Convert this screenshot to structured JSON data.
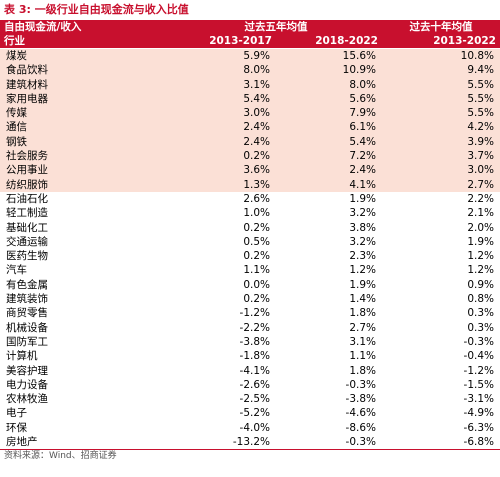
{
  "caption": "表 3:  一级行业自由现金流与收入比值",
  "header": {
    "left_label_1": "自由现金流/收入",
    "group_5yr": "过去五年均值",
    "group_10yr": "过去十年均值",
    "left_label_2": "行业",
    "col1": "2013-2017",
    "col2": "2018-2022",
    "col3": "2013-2022"
  },
  "rows": [
    {
      "name": "煤炭",
      "v1": "5.9%",
      "v2": "15.6%",
      "v3": "10.8%",
      "highlight": true
    },
    {
      "name": "食品饮料",
      "v1": "8.0%",
      "v2": "10.9%",
      "v3": "9.4%",
      "highlight": true
    },
    {
      "name": "建筑材料",
      "v1": "3.1%",
      "v2": "8.0%",
      "v3": "5.5%",
      "highlight": true
    },
    {
      "name": "家用电器",
      "v1": "5.4%",
      "v2": "5.6%",
      "v3": "5.5%",
      "highlight": true
    },
    {
      "name": "传媒",
      "v1": "3.0%",
      "v2": "7.9%",
      "v3": "5.5%",
      "highlight": true
    },
    {
      "name": "通信",
      "v1": "2.4%",
      "v2": "6.1%",
      "v3": "4.2%",
      "highlight": true
    },
    {
      "name": "钢铁",
      "v1": "2.4%",
      "v2": "5.4%",
      "v3": "3.9%",
      "highlight": true
    },
    {
      "name": "社会服务",
      "v1": "0.2%",
      "v2": "7.2%",
      "v3": "3.7%",
      "highlight": true
    },
    {
      "name": "公用事业",
      "v1": "3.6%",
      "v2": "2.4%",
      "v3": "3.0%",
      "highlight": true
    },
    {
      "name": "纺织服饰",
      "v1": "1.3%",
      "v2": "4.1%",
      "v3": "2.7%",
      "highlight": true
    },
    {
      "name": "石油石化",
      "v1": "2.6%",
      "v2": "1.9%",
      "v3": "2.2%",
      "highlight": false
    },
    {
      "name": "轻工制造",
      "v1": "1.0%",
      "v2": "3.2%",
      "v3": "2.1%",
      "highlight": false
    },
    {
      "name": "基础化工",
      "v1": "0.2%",
      "v2": "3.8%",
      "v3": "2.0%",
      "highlight": false
    },
    {
      "name": "交通运输",
      "v1": "0.5%",
      "v2": "3.2%",
      "v3": "1.9%",
      "highlight": false
    },
    {
      "name": "医药生物",
      "v1": "0.2%",
      "v2": "2.3%",
      "v3": "1.2%",
      "highlight": false
    },
    {
      "name": "汽车",
      "v1": "1.1%",
      "v2": "1.2%",
      "v3": "1.2%",
      "highlight": false
    },
    {
      "name": "有色金属",
      "v1": "0.0%",
      "v2": "1.9%",
      "v3": "0.9%",
      "highlight": false
    },
    {
      "name": "建筑装饰",
      "v1": "0.2%",
      "v2": "1.4%",
      "v3": "0.8%",
      "highlight": false
    },
    {
      "name": "商贸零售",
      "v1": "-1.2%",
      "v2": "1.8%",
      "v3": "0.3%",
      "highlight": false
    },
    {
      "name": "机械设备",
      "v1": "-2.2%",
      "v2": "2.7%",
      "v3": "0.3%",
      "highlight": false
    },
    {
      "name": "国防军工",
      "v1": "-3.8%",
      "v2": "3.1%",
      "v3": "-0.3%",
      "highlight": false
    },
    {
      "name": "计算机",
      "v1": "-1.8%",
      "v2": "1.1%",
      "v3": "-0.4%",
      "highlight": false
    },
    {
      "name": "美容护理",
      "v1": "-4.1%",
      "v2": "1.8%",
      "v3": "-1.2%",
      "highlight": false
    },
    {
      "name": "电力设备",
      "v1": "-2.6%",
      "v2": "-0.3%",
      "v3": "-1.5%",
      "highlight": false
    },
    {
      "name": "农林牧渔",
      "v1": "-2.5%",
      "v2": "-3.8%",
      "v3": "-3.1%",
      "highlight": false
    },
    {
      "name": "电子",
      "v1": "-5.2%",
      "v2": "-4.6%",
      "v3": "-4.9%",
      "highlight": false
    },
    {
      "name": "环保",
      "v1": "-4.0%",
      "v2": "-8.6%",
      "v3": "-6.3%",
      "highlight": false
    },
    {
      "name": "房地产",
      "v1": "-13.2%",
      "v2": "-0.3%",
      "v3": "-6.8%",
      "highlight": false
    }
  ],
  "footer": "资料来源：Wind、招商证券",
  "colors": {
    "accent": "#c8102e",
    "highlight_row": "#fbe0d6"
  }
}
